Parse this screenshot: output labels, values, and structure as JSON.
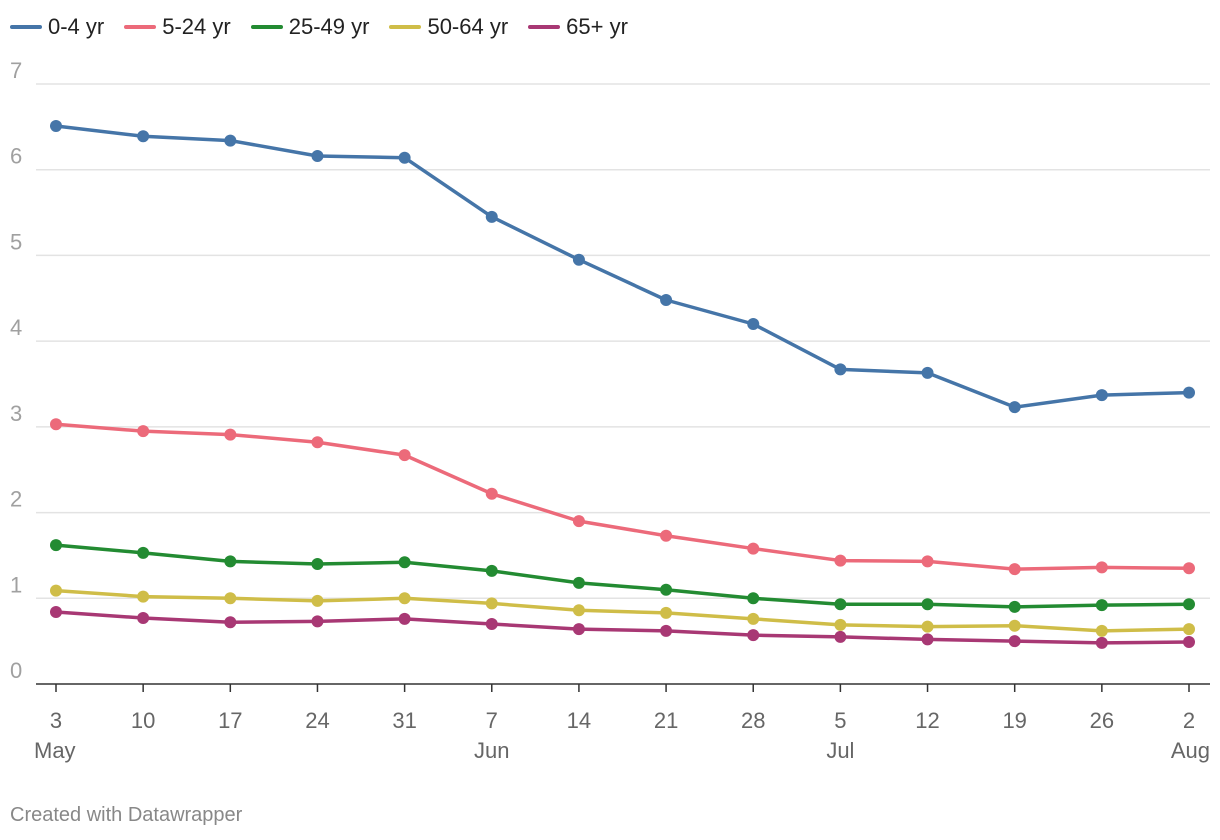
{
  "chart_data": {
    "type": "line",
    "title": "",
    "xlabel": "",
    "ylabel": "",
    "ylim": [
      0,
      7
    ],
    "yticks": [
      "0",
      "1",
      "2",
      "3",
      "4",
      "5",
      "6",
      "7"
    ],
    "x": [
      {
        "day": "3",
        "month": "May"
      },
      {
        "day": "10",
        "month": ""
      },
      {
        "day": "17",
        "month": ""
      },
      {
        "day": "24",
        "month": ""
      },
      {
        "day": "31",
        "month": ""
      },
      {
        "day": "7",
        "month": "Jun"
      },
      {
        "day": "14",
        "month": ""
      },
      {
        "day": "21",
        "month": ""
      },
      {
        "day": "28",
        "month": ""
      },
      {
        "day": "5",
        "month": "Jul"
      },
      {
        "day": "12",
        "month": ""
      },
      {
        "day": "19",
        "month": ""
      },
      {
        "day": "26",
        "month": ""
      },
      {
        "day": "2",
        "month": "Aug"
      }
    ],
    "series": [
      {
        "name": "0-4 yr",
        "color": "#4575a8",
        "values": [
          6.51,
          6.39,
          6.34,
          6.16,
          6.14,
          5.45,
          4.95,
          4.48,
          4.2,
          3.67,
          3.63,
          3.23,
          3.37,
          3.4
        ]
      },
      {
        "name": "5-24 yr",
        "color": "#ec6a7a",
        "values": [
          3.03,
          2.95,
          2.91,
          2.82,
          2.67,
          2.22,
          1.9,
          1.73,
          1.58,
          1.44,
          1.43,
          1.34,
          1.36,
          1.35
        ]
      },
      {
        "name": "25-49 yr",
        "color": "#238b32",
        "values": [
          1.62,
          1.53,
          1.43,
          1.4,
          1.42,
          1.32,
          1.18,
          1.1,
          1.0,
          0.93,
          0.93,
          0.9,
          0.92,
          0.93
        ]
      },
      {
        "name": "50-64 yr",
        "color": "#cfbd48",
        "values": [
          1.09,
          1.02,
          1.0,
          0.97,
          1.0,
          0.94,
          0.86,
          0.83,
          0.76,
          0.69,
          0.67,
          0.68,
          0.62,
          0.64
        ]
      },
      {
        "name": "65+ yr",
        "color": "#a83874",
        "values": [
          0.84,
          0.77,
          0.72,
          0.73,
          0.76,
          0.7,
          0.64,
          0.62,
          0.57,
          0.55,
          0.52,
          0.5,
          0.48,
          0.49
        ]
      }
    ]
  },
  "footer": {
    "credit": "Created with Datawrapper"
  }
}
